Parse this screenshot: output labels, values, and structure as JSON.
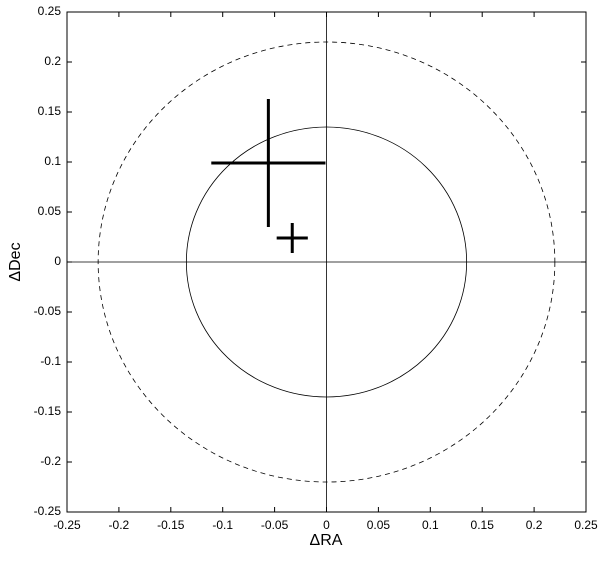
{
  "chart_data": {
    "type": "errorbar",
    "xlabel": "ΔRA",
    "ylabel": "ΔDec",
    "xlim": [
      -0.25,
      0.25
    ],
    "ylim": [
      -0.25,
      0.25
    ],
    "xticks": [
      -0.25,
      -0.2,
      -0.15,
      -0.1,
      -0.05,
      0,
      0.05,
      0.1,
      0.15,
      0.2,
      0.25
    ],
    "yticks": [
      -0.25,
      -0.2,
      -0.15,
      -0.1,
      -0.05,
      0,
      0.05,
      0.1,
      0.15,
      0.2,
      0.25
    ],
    "grid": false,
    "series": [
      {
        "color": "#000000",
        "x": [
          -0.056,
          -0.033
        ],
        "y": [
          0.099,
          0.024
        ],
        "xerr": [
          0.055,
          0.015
        ],
        "yerr": [
          0.064,
          0.015
        ]
      }
    ],
    "circles": [
      {
        "radius": 0.135,
        "style": "solid"
      },
      {
        "radius": 0.22,
        "style": "dashed"
      }
    ]
  }
}
